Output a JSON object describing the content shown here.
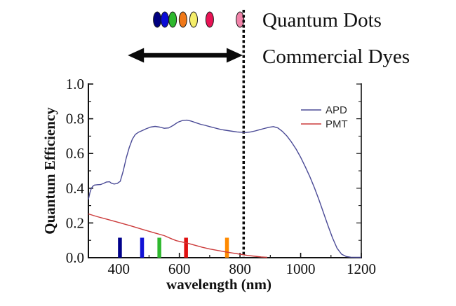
{
  "header": {
    "quantum_dots_label": "Quantum Dots",
    "commercial_dyes_label": "Commercial Dyes"
  },
  "quantum_dots": {
    "dots": [
      {
        "name": "navy-dot",
        "color": "#000080",
        "wavelength": 527
      },
      {
        "name": "blue-dot",
        "color": "#0b0bd6",
        "wavelength": 552
      },
      {
        "name": "green-dot",
        "color": "#2eb82e",
        "wavelength": 578
      },
      {
        "name": "orange-dot",
        "color": "#f07818",
        "wavelength": 612
      },
      {
        "name": "yellow-dot",
        "color": "#f5ee6a",
        "wavelength": 647
      },
      {
        "name": "crimson-dot",
        "color": "#e81355",
        "wavelength": 700
      },
      {
        "name": "pink-dot",
        "color": "#f082a8",
        "wavelength": 800
      }
    ]
  },
  "commercial_dyes": {
    "range_nm": [
      430,
      809
    ]
  },
  "divider_nm": 812,
  "chart_data": {
    "type": "line",
    "title": "",
    "xlabel": "wavelength (nm)",
    "ylabel": "Quantum Efficiency",
    "xlim": [
      300,
      1200
    ],
    "ylim": [
      0.0,
      1.0
    ],
    "x_major_ticks": [
      400,
      600,
      800,
      1000,
      1200
    ],
    "x_minor_ticks": [
      500,
      700,
      900,
      1100
    ],
    "y_major_ticks": [
      0.0,
      0.2,
      0.4,
      0.6,
      0.8,
      1.0
    ],
    "y_minor_ticks": [
      0.1,
      0.3,
      0.5,
      0.7,
      0.9
    ],
    "grid": false,
    "legend_position": "upper-right",
    "series": [
      {
        "name": "APD",
        "color": "#4a4a96",
        "points": [
          [
            300,
            0.335
          ],
          [
            305,
            0.375
          ],
          [
            310,
            0.4
          ],
          [
            315,
            0.412
          ],
          [
            320,
            0.418
          ],
          [
            330,
            0.42
          ],
          [
            340,
            0.421
          ],
          [
            350,
            0.428
          ],
          [
            360,
            0.436
          ],
          [
            370,
            0.437
          ],
          [
            375,
            0.43
          ],
          [
            385,
            0.424
          ],
          [
            395,
            0.428
          ],
          [
            405,
            0.44
          ],
          [
            415,
            0.5
          ],
          [
            425,
            0.575
          ],
          [
            435,
            0.635
          ],
          [
            445,
            0.683
          ],
          [
            455,
            0.71
          ],
          [
            465,
            0.722
          ],
          [
            475,
            0.73
          ],
          [
            490,
            0.742
          ],
          [
            505,
            0.752
          ],
          [
            520,
            0.756
          ],
          [
            535,
            0.752
          ],
          [
            550,
            0.745
          ],
          [
            565,
            0.747
          ],
          [
            580,
            0.762
          ],
          [
            595,
            0.78
          ],
          [
            610,
            0.79
          ],
          [
            625,
            0.792
          ],
          [
            640,
            0.786
          ],
          [
            655,
            0.777
          ],
          [
            670,
            0.768
          ],
          [
            685,
            0.762
          ],
          [
            700,
            0.755
          ],
          [
            715,
            0.748
          ],
          [
            730,
            0.741
          ],
          [
            745,
            0.736
          ],
          [
            760,
            0.732
          ],
          [
            775,
            0.728
          ],
          [
            790,
            0.724
          ],
          [
            805,
            0.722
          ],
          [
            820,
            0.721
          ],
          [
            835,
            0.724
          ],
          [
            850,
            0.73
          ],
          [
            865,
            0.737
          ],
          [
            880,
            0.744
          ],
          [
            895,
            0.751
          ],
          [
            910,
            0.755
          ],
          [
            925,
            0.747
          ],
          [
            940,
            0.727
          ],
          [
            955,
            0.7
          ],
          [
            970,
            0.665
          ],
          [
            985,
            0.625
          ],
          [
            1000,
            0.578
          ],
          [
            1015,
            0.525
          ],
          [
            1030,
            0.468
          ],
          [
            1045,
            0.405
          ],
          [
            1060,
            0.335
          ],
          [
            1075,
            0.26
          ],
          [
            1090,
            0.185
          ],
          [
            1105,
            0.115
          ],
          [
            1120,
            0.055
          ],
          [
            1135,
            0.02
          ],
          [
            1150,
            0.007
          ],
          [
            1165,
            0.003
          ],
          [
            1185,
            0.002
          ],
          [
            1200,
            0.002
          ]
        ]
      },
      {
        "name": "PMT",
        "color": "#cc3b3b",
        "points": [
          [
            300,
            0.252
          ],
          [
            330,
            0.236
          ],
          [
            360,
            0.222
          ],
          [
            400,
            0.203
          ],
          [
            440,
            0.183
          ],
          [
            480,
            0.162
          ],
          [
            520,
            0.142
          ],
          [
            550,
            0.127
          ],
          [
            575,
            0.108
          ],
          [
            590,
            0.098
          ],
          [
            610,
            0.09
          ],
          [
            630,
            0.082
          ],
          [
            650,
            0.072
          ],
          [
            675,
            0.06
          ],
          [
            700,
            0.05
          ],
          [
            725,
            0.042
          ],
          [
            750,
            0.034
          ],
          [
            775,
            0.027
          ],
          [
            800,
            0.02
          ],
          [
            825,
            0.013
          ],
          [
            850,
            0.008
          ],
          [
            870,
            0.004
          ],
          [
            890,
            0.002
          ]
        ]
      }
    ],
    "emission_bars": [
      {
        "name": "navy-bar",
        "wavelength": 404,
        "height": 0.115,
        "color": "#00008b"
      },
      {
        "name": "blue-bar",
        "wavelength": 477,
        "height": 0.115,
        "color": "#1212d6"
      },
      {
        "name": "green-bar",
        "wavelength": 534,
        "height": 0.115,
        "color": "#2eb82e"
      },
      {
        "name": "red-bar",
        "wavelength": 622,
        "height": 0.115,
        "color": "#e01111"
      },
      {
        "name": "orange-bar",
        "wavelength": 757,
        "height": 0.115,
        "color": "#ff8a00"
      }
    ]
  }
}
